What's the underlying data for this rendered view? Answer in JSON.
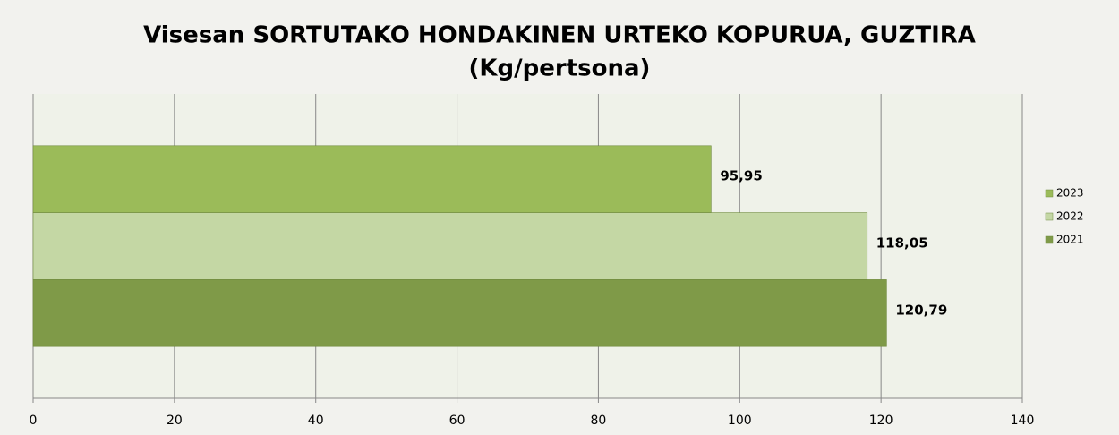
{
  "chart_data": {
    "type": "bar",
    "orientation": "horizontal",
    "title": [
      "Visesan SORTUTAKO HONDAKINEN URTEKO KOPURUA, GUZTIRA",
      "(Kg/pertsona)"
    ],
    "categories": [
      null
    ],
    "series": [
      {
        "name": "2023",
        "color": "#9bbb59",
        "values": [
          95.95
        ],
        "value_labels": [
          "95,95"
        ]
      },
      {
        "name": "2022",
        "color": "#c4d7a4",
        "values": [
          118.05
        ],
        "value_labels": [
          "118,05"
        ]
      },
      {
        "name": "2021",
        "color": "#7f9a48",
        "values": [
          120.79
        ],
        "value_labels": [
          "120,79"
        ]
      }
    ],
    "xlim": [
      0,
      140
    ],
    "xticks": [
      0,
      20,
      40,
      60,
      80,
      100,
      120,
      140
    ],
    "grid": true,
    "legend": "right"
  }
}
